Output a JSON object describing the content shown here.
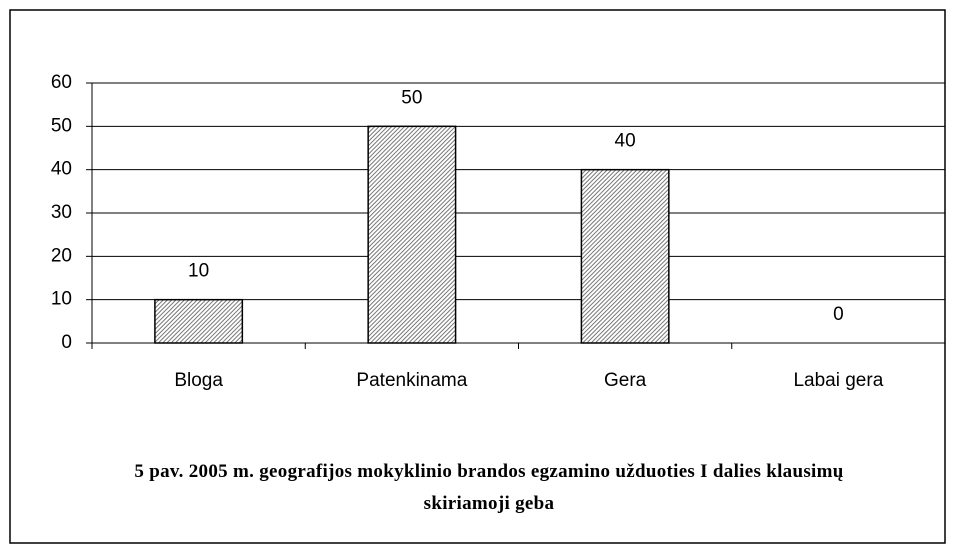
{
  "chart_data": {
    "type": "bar",
    "title": "5 pav. 2005 m. geografijos mokyklinio brandos egzamino užduoties I dalies klausimų skiriamoji geba",
    "categories": [
      "Bloga",
      "Patenkinama",
      "Gera",
      "Labai gera"
    ],
    "values": [
      10,
      50,
      40,
      0
    ],
    "color": "#777777",
    "ylim": [
      0,
      60
    ],
    "yticks": [
      0,
      10,
      20,
      30,
      40,
      50,
      60
    ],
    "grid": true
  }
}
